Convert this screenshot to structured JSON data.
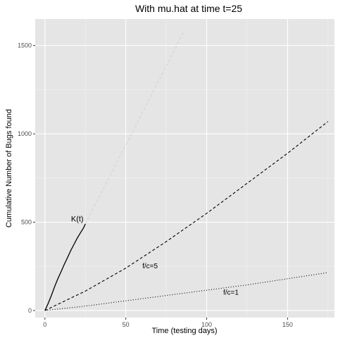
{
  "chart_data": {
    "type": "line",
    "title": "With mu.hat at time t=25",
    "xlabel": "Time (testing days)",
    "ylabel": "Cumulative Number of Bugs found",
    "xlim": [
      -6,
      179
    ],
    "ylim": [
      -40,
      1650
    ],
    "xticks": [
      0,
      50,
      100,
      150
    ],
    "yticks": [
      0,
      500,
      1000,
      1500
    ],
    "xtick_labels": [
      "0",
      "50",
      "100",
      "150"
    ],
    "ytick_labels": [
      "0",
      "500",
      "1000",
      "1500"
    ],
    "grid": true,
    "legend": "none",
    "series": [
      {
        "style": "solid",
        "color": "#000000",
        "x": [
          0,
          2,
          4,
          6,
          8,
          10,
          12,
          14,
          16,
          18,
          20,
          22,
          24,
          25
        ],
        "y": [
          0,
          40,
          85,
          135,
          180,
          220,
          262,
          300,
          340,
          375,
          410,
          440,
          470,
          490
        ]
      },
      {
        "style": "dashed",
        "color": "#d3d3d3",
        "x": [
          25,
          86
        ],
        "y": [
          490,
          1580
        ]
      },
      {
        "style": "dashed",
        "color": "#000000",
        "x": [
          0,
          25,
          50,
          75,
          100,
          125,
          150,
          175
        ],
        "y": [
          0,
          110,
          240,
          390,
          550,
          720,
          890,
          1070
        ]
      },
      {
        "style": "dotted",
        "color": "#000000",
        "x": [
          0,
          25,
          50,
          75,
          100,
          125,
          150,
          175
        ],
        "y": [
          0,
          25,
          55,
          85,
          115,
          145,
          180,
          215
        ]
      }
    ],
    "annotations": [
      {
        "text": "K(t)",
        "x": 20,
        "y": 520,
        "size": "large"
      },
      {
        "text": "f/c=5",
        "x": 65,
        "y": 255,
        "size": "small"
      },
      {
        "text": "f/c=1",
        "x": 115,
        "y": 105,
        "size": "small"
      }
    ]
  },
  "colors": {
    "panel": "#e5e5e5",
    "grid_major": "#ffffff",
    "grid_minor": "#f2f2f2",
    "ticks": "#333333"
  }
}
